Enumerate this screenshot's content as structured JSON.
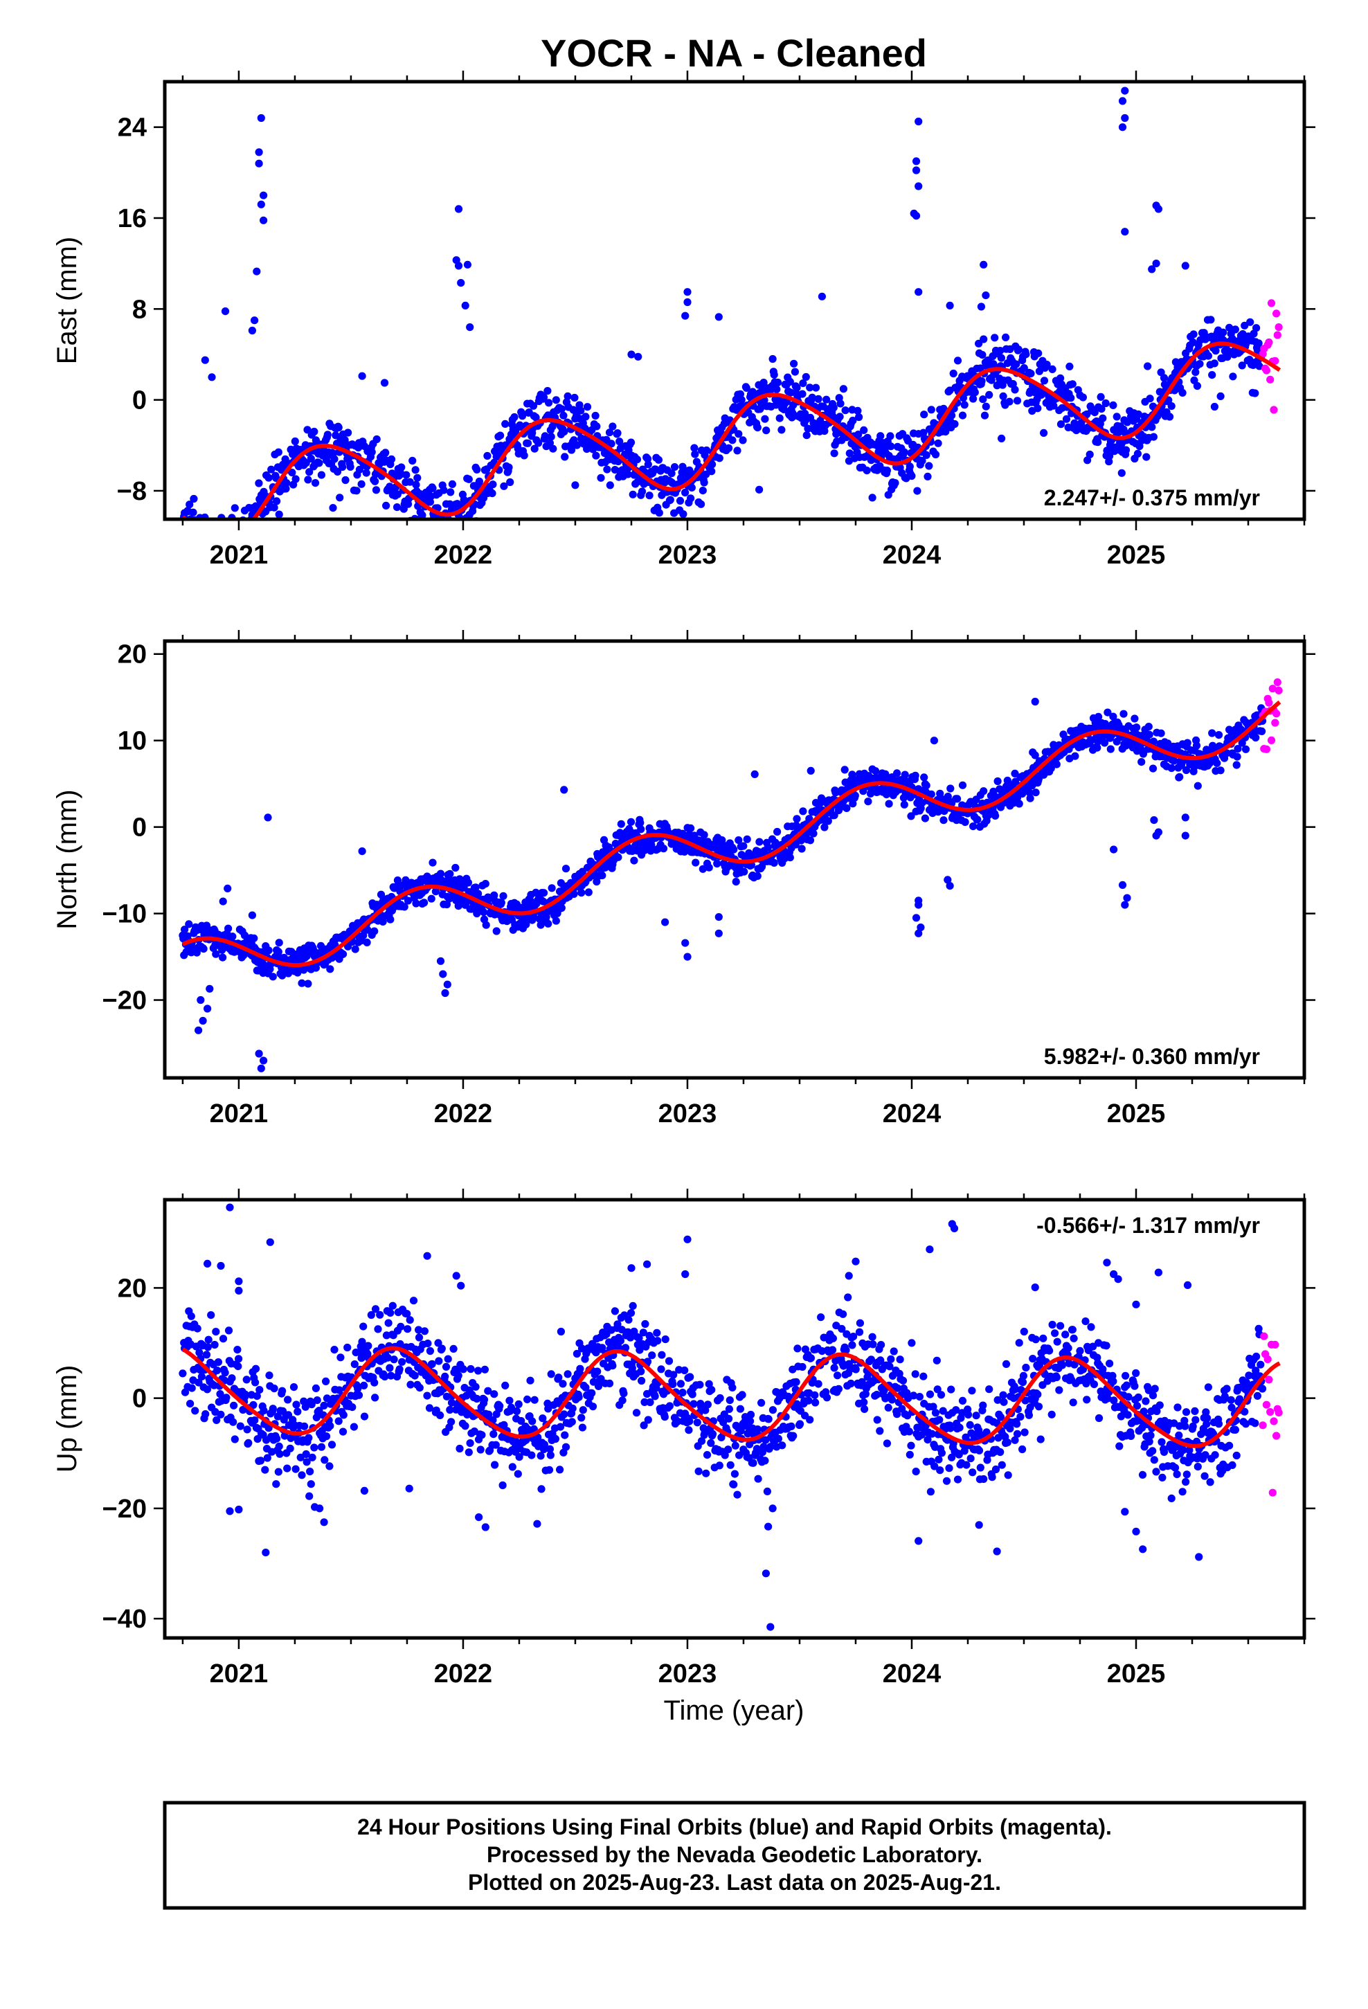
{
  "title": "YOCR  - NA - Cleaned",
  "x_axis_label": "Time (year)",
  "footer": {
    "lines": [
      "24 Hour Positions Using Final Orbits (blue) and Rapid Orbits (magenta).",
      "Processed by the Nevada Geodetic Laboratory.",
      "Plotted on 2025-Aug-23. Last data on 2025-Aug-21."
    ]
  },
  "colors": {
    "final_orbits": "#0000ff",
    "rapid_orbits": "#ff00ff",
    "model_fit": "#ff0000",
    "frame": "#000000"
  },
  "chart_data": [
    {
      "type": "scatter",
      "name": "East",
      "ylabel": "East (mm)",
      "xlabel": "",
      "xlim": [
        2020.67,
        2025.75
      ],
      "ylim": [
        -10.5,
        28
      ],
      "x_ticks": [
        2021,
        2022,
        2023,
        2024,
        2025
      ],
      "y_ticks": [
        -8,
        0,
        8,
        16,
        24
      ],
      "rate_text": "2.247+/- 0.375 mm/yr",
      "rate_position": "bottom-right",
      "fit": {
        "slope": 2.247,
        "intercept": -3.4,
        "annual_cos": -3.0,
        "annual_sin": 1.9,
        "semiannual_cos": -0.5,
        "semiannual_sin": 0.0
      },
      "scatter_sigma": 1.3,
      "final_start": 2020.75,
      "final_end": 2025.565,
      "rapid_start": 2025.565,
      "rapid_end": 2025.64,
      "outliers": [
        [
          2021.1,
          24.8
        ],
        [
          2021.09,
          21.8
        ],
        [
          2021.09,
          20.8
        ],
        [
          2021.11,
          18.0
        ],
        [
          2021.1,
          17.2
        ],
        [
          2021.11,
          15.8
        ],
        [
          2021.08,
          11.3
        ],
        [
          2021.07,
          7.0
        ],
        [
          2021.06,
          6.1
        ],
        [
          2020.94,
          7.8
        ],
        [
          2021.98,
          16.8
        ],
        [
          2021.97,
          12.3
        ],
        [
          2021.98,
          11.8
        ],
        [
          2022.02,
          11.9
        ],
        [
          2021.99,
          10.3
        ],
        [
          2022.01,
          8.3
        ],
        [
          2022.03,
          6.4
        ],
        [
          2023.0,
          9.5
        ],
        [
          2023.0,
          8.6
        ],
        [
          2022.99,
          7.4
        ],
        [
          2023.14,
          7.3
        ],
        [
          2024.03,
          24.5
        ],
        [
          2024.02,
          21.0
        ],
        [
          2024.02,
          20.2
        ],
        [
          2024.03,
          18.8
        ],
        [
          2024.01,
          16.4
        ],
        [
          2024.02,
          16.2
        ],
        [
          2024.03,
          9.5
        ],
        [
          2024.17,
          8.3
        ],
        [
          2024.32,
          11.9
        ],
        [
          2024.33,
          9.2
        ],
        [
          2024.31,
          8.2
        ],
        [
          2024.95,
          27.2
        ],
        [
          2024.94,
          26.3
        ],
        [
          2024.95,
          24.8
        ],
        [
          2024.94,
          24.0
        ],
        [
          2025.09,
          17.1
        ],
        [
          2025.1,
          16.8
        ],
        [
          2024.95,
          14.8
        ],
        [
          2025.07,
          11.5
        ],
        [
          2025.09,
          12.0
        ],
        [
          2025.22,
          11.8
        ],
        [
          2022.75,
          4.0
        ],
        [
          2022.78,
          3.8
        ],
        [
          2023.38,
          3.6
        ],
        [
          2023.6,
          9.1
        ],
        [
          2021.55,
          2.1
        ],
        [
          2021.65,
          1.5
        ],
        [
          2020.85,
          3.5
        ],
        [
          2020.88,
          2.0
        ],
        [
          2021.42,
          -9.5
        ],
        [
          2021.45,
          -8.6
        ],
        [
          2022.5,
          -7.5
        ],
        [
          2023.32,
          -7.9
        ],
        [
          2024.4,
          -3.4
        ],
        [
          2025.35,
          -0.6
        ]
      ]
    },
    {
      "type": "scatter",
      "name": "North",
      "ylabel": "North (mm)",
      "xlabel": "",
      "xlim": [
        2020.67,
        2025.75
      ],
      "ylim": [
        -29,
        21.5
      ],
      "x_ticks": [
        2021,
        2022,
        2023,
        2024,
        2025
      ],
      "y_ticks": [
        -20,
        -10,
        0,
        10,
        20
      ],
      "rate_text": "5.982+/- 0.360 mm/yr",
      "rate_position": "bottom-right",
      "fit": {
        "slope": 5.982,
        "intercept": -1.6,
        "annual_cos": 1.0,
        "annual_sin": -2.7,
        "semiannual_cos": 0.0,
        "semiannual_sin": 0.0
      },
      "scatter_sigma": 1.0,
      "final_start": 2020.75,
      "final_end": 2025.565,
      "rapid_start": 2025.565,
      "rapid_end": 2025.64,
      "outliers": [
        [
          2021.1,
          -27.9
        ],
        [
          2021.11,
          -27.0
        ],
        [
          2021.09,
          -26.2
        ],
        [
          2021.13,
          1.1
        ],
        [
          2020.82,
          -23.5
        ],
        [
          2020.84,
          -22.4
        ],
        [
          2020.86,
          -21.0
        ],
        [
          2020.83,
          -20.0
        ],
        [
          2020.87,
          -18.7
        ],
        [
          2020.95,
          -7.1
        ],
        [
          2020.93,
          -8.6
        ],
        [
          2021.06,
          -10.2
        ],
        [
          2021.92,
          -19.2
        ],
        [
          2021.93,
          -18.2
        ],
        [
          2021.91,
          -17.0
        ],
        [
          2021.9,
          -15.5
        ],
        [
          2022.9,
          -11.0
        ],
        [
          2023.0,
          -15.0
        ],
        [
          2022.99,
          -13.4
        ],
        [
          2023.14,
          -12.3
        ],
        [
          2023.14,
          -10.4
        ],
        [
          2024.03,
          -12.3
        ],
        [
          2024.04,
          -11.6
        ],
        [
          2024.02,
          -10.5
        ],
        [
          2024.03,
          -9.0
        ],
        [
          2024.03,
          -8.5
        ],
        [
          2024.17,
          -6.8
        ],
        [
          2024.16,
          -6.1
        ],
        [
          2024.1,
          10.0
        ],
        [
          2024.06,
          1.0
        ],
        [
          2024.95,
          -9.0
        ],
        [
          2024.96,
          -8.2
        ],
        [
          2024.94,
          -6.7
        ],
        [
          2024.9,
          -2.6
        ],
        [
          2025.09,
          -1.0
        ],
        [
          2025.1,
          -0.6
        ],
        [
          2025.08,
          0.8
        ],
        [
          2025.22,
          -1.0
        ],
        [
          2025.22,
          1.1
        ],
        [
          2021.55,
          -2.8
        ],
        [
          2022.45,
          4.3
        ],
        [
          2023.55,
          6.5
        ],
        [
          2024.55,
          14.5
        ],
        [
          2023.98,
          5.2
        ],
        [
          2023.3,
          6.1
        ]
      ]
    },
    {
      "type": "scatter",
      "name": "Up",
      "ylabel": "Up (mm)",
      "xlabel": "Time (year)",
      "xlim": [
        2020.67,
        2025.75
      ],
      "ylim": [
        -43.5,
        36
      ],
      "x_ticks": [
        2021,
        2022,
        2023,
        2024,
        2025
      ],
      "y_ticks": [
        -40,
        -20,
        0,
        20
      ],
      "rate_text": "-0.566+/- 1.317 mm/yr",
      "rate_position": "top-right",
      "fit": {
        "slope": -0.566,
        "intercept": 0.0,
        "annual_cos": -1.5,
        "annual_sin": -7.5,
        "semiannual_cos": 0.0,
        "semiannual_sin": 1.0
      },
      "scatter_sigma": 4.2,
      "final_start": 2020.75,
      "final_end": 2025.565,
      "rapid_start": 2025.565,
      "rapid_end": 2025.64,
      "outliers": [
        [
          2020.96,
          34.6
        ],
        [
          2021.14,
          28.3
        ],
        [
          2020.86,
          24.4
        ],
        [
          2020.92,
          24.0
        ],
        [
          2021.0,
          21.2
        ],
        [
          2021.0,
          19.5
        ],
        [
          2020.96,
          -20.5
        ],
        [
          2021.0,
          -20.2
        ],
        [
          2021.12,
          -28.0
        ],
        [
          2021.38,
          -22.5
        ],
        [
          2021.36,
          -20.0
        ],
        [
          2021.56,
          -16.8
        ],
        [
          2021.76,
          -16.4
        ],
        [
          2021.84,
          25.8
        ],
        [
          2021.97,
          22.2
        ],
        [
          2021.99,
          20.4
        ],
        [
          2022.07,
          -21.6
        ],
        [
          2022.1,
          -23.4
        ],
        [
          2022.33,
          -22.8
        ],
        [
          2022.75,
          23.6
        ],
        [
          2022.82,
          24.3
        ],
        [
          2023.0,
          28.8
        ],
        [
          2022.99,
          22.5
        ],
        [
          2023.35,
          -31.8
        ],
        [
          2023.37,
          -41.5
        ],
        [
          2023.36,
          -23.3
        ],
        [
          2023.38,
          -20.0
        ],
        [
          2023.75,
          24.8
        ],
        [
          2023.72,
          22.2
        ],
        [
          2024.03,
          -25.9
        ],
        [
          2024.18,
          31.6
        ],
        [
          2024.19,
          30.8
        ],
        [
          2024.08,
          27.0
        ],
        [
          2024.38,
          -27.8
        ],
        [
          2024.3,
          -23.0
        ],
        [
          2024.55,
          20.1
        ],
        [
          2024.87,
          24.6
        ],
        [
          2024.9,
          22.5
        ],
        [
          2024.92,
          21.6
        ],
        [
          2024.95,
          -20.6
        ],
        [
          2025.03,
          -27.4
        ],
        [
          2025.0,
          -24.2
        ],
        [
          2025.1,
          22.8
        ],
        [
          2025.23,
          20.5
        ],
        [
          2025.28,
          -28.8
        ],
        [
          2025.0,
          17.0
        ]
      ]
    }
  ]
}
